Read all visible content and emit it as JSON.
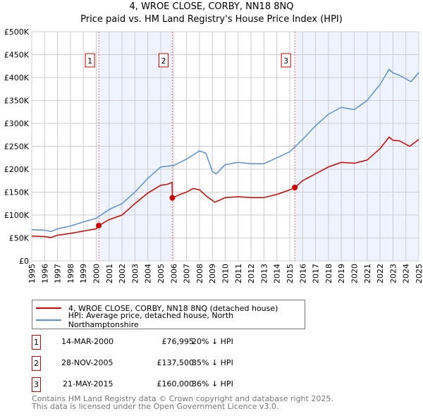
{
  "chart_data": {
    "type": "line",
    "title": "4, WROE CLOSE, CORBY, NN18 8NQ",
    "subtitle": "Price paid vs. HM Land Registry's House Price Index (HPI)",
    "xlim": [
      1995,
      2025
    ],
    "ylim": [
      0,
      500000
    ],
    "x_ticks": [
      "1995",
      "1996",
      "1997",
      "1998",
      "1999",
      "2000",
      "2001",
      "2002",
      "2003",
      "2004",
      "2005",
      "2006",
      "2007",
      "2008",
      "2009",
      "2010",
      "2011",
      "2012",
      "2013",
      "2014",
      "2015",
      "2016",
      "2017",
      "2018",
      "2019",
      "2020",
      "2021",
      "2022",
      "2023",
      "2024",
      "2025"
    ],
    "y_ticks": [
      {
        "v": 0,
        "label": "£0"
      },
      {
        "v": 50000,
        "label": "£50K"
      },
      {
        "v": 100000,
        "label": "£100K"
      },
      {
        "v": 150000,
        "label": "£150K"
      },
      {
        "v": 200000,
        "label": "£200K"
      },
      {
        "v": 250000,
        "label": "£250K"
      },
      {
        "v": 300000,
        "label": "£300K"
      },
      {
        "v": 350000,
        "label": "£350K"
      },
      {
        "v": 400000,
        "label": "£400K"
      },
      {
        "v": 450000,
        "label": "£450K"
      },
      {
        "v": 500000,
        "label": "£500K"
      }
    ],
    "grid": true,
    "series": [
      {
        "name": "4, WROE CLOSE, CORBY, NN18 8NQ (detached house)",
        "color": "#cc0000",
        "x": [
          1995,
          1996,
          1996.5,
          1997,
          1998,
          1999,
          2000,
          2000.2,
          2001,
          2002,
          2003,
          2004,
          2005,
          2005.5,
          2005.88,
          2005.9,
          2006.5,
          2007,
          2007.5,
          2008,
          2008.6,
          2009.2,
          2010,
          2011,
          2012,
          2013,
          2014,
          2015,
          2015.4,
          2016,
          2017,
          2018,
          2019,
          2020,
          2021,
          2022,
          2022.7,
          2023,
          2023.5,
          2024.3,
          2025
        ],
        "y": [
          54000,
          53000,
          51000,
          56000,
          60000,
          65000,
          70000,
          77000,
          90000,
          100000,
          125000,
          148000,
          165000,
          167000,
          171000,
          137500,
          145000,
          150000,
          158000,
          155000,
          140000,
          128000,
          138000,
          140000,
          138000,
          138000,
          145000,
          155000,
          160000,
          175000,
          190000,
          205000,
          215000,
          213000,
          220000,
          245000,
          270000,
          263000,
          262000,
          250000,
          265000
        ]
      },
      {
        "name": "HPI: Average price, detached house, North Northamptonshire",
        "color": "#5b8fd4",
        "x": [
          1995,
          1996,
          1996.5,
          1997,
          1998,
          1999,
          2000,
          2000.2,
          2001,
          2002,
          2003,
          2004,
          2005,
          2006,
          2007,
          2008,
          2008.5,
          2009,
          2009.3,
          2010,
          2011,
          2012,
          2013,
          2014,
          2015,
          2016,
          2017,
          2018,
          2019,
          2020,
          2021,
          2022,
          2022.7,
          2023,
          2023.5,
          2024.4,
          2025
        ],
        "y": [
          68000,
          67000,
          64000,
          70000,
          76000,
          85000,
          93000,
          97000,
          112000,
          125000,
          150000,
          180000,
          205000,
          208000,
          222000,
          240000,
          235000,
          195000,
          190000,
          210000,
          215000,
          212000,
          212000,
          225000,
          238000,
          265000,
          295000,
          320000,
          335000,
          330000,
          350000,
          385000,
          418000,
          410000,
          405000,
          391000,
          411000
        ]
      }
    ],
    "sales": [
      {
        "id": "1",
        "x": 2000.2,
        "date": "14-MAR-2000",
        "price": 76995,
        "price_label": "£76,995",
        "hpi": "20% ↓ HPI"
      },
      {
        "id": "2",
        "x": 2005.9,
        "date": "28-NOV-2005",
        "price": 137500,
        "price_label": "£137,500",
        "hpi": "35% ↓ HPI"
      },
      {
        "id": "3",
        "x": 2015.39,
        "date": "21-MAY-2015",
        "price": 160000,
        "price_label": "£160,000",
        "hpi": "36% ↓ HPI"
      }
    ],
    "shade_color": "#eef3fd"
  },
  "footer": {
    "line1": "Contains HM Land Registry data © Crown copyright and database right 2025.",
    "line2": "This data is licensed under the Open Government Licence v3.0."
  }
}
